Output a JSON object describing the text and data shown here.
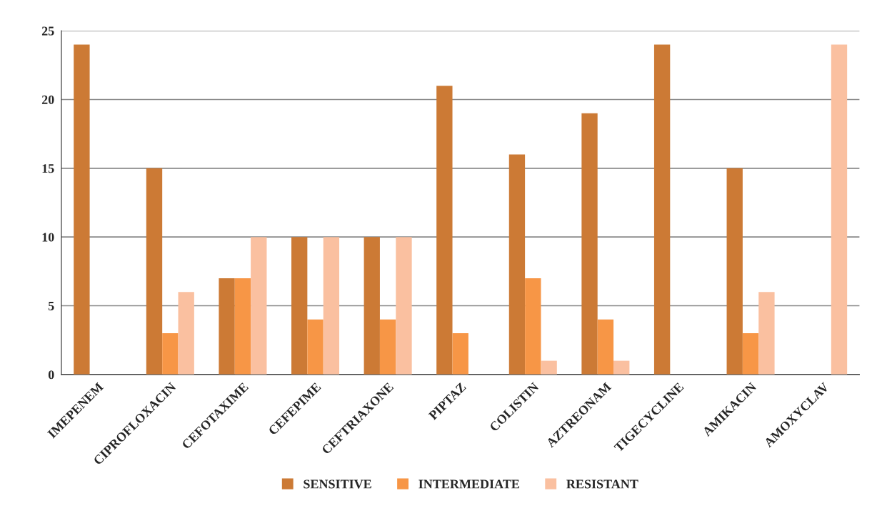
{
  "chart_data": {
    "type": "bar",
    "categories": [
      "IMEPENEM",
      "CIPROFLOXACIN",
      "CEFOTAXIME",
      "CEFEPIME",
      "CEFTRIAXONE",
      "PIPTAZ",
      "COLISTIN",
      "AZTREONAM",
      "TIGECYCLINE",
      "AMIKACIN",
      "AMOXYCLAV"
    ],
    "series": [
      {
        "name": "SENSITIVE",
        "color": "#cc7a35",
        "values": [
          24,
          15,
          7,
          10,
          10,
          21,
          16,
          19,
          24,
          15,
          0
        ]
      },
      {
        "name": "INTERMEDIATE",
        "color": "#f79646",
        "values": [
          0,
          3,
          7,
          4,
          4,
          3,
          7,
          4,
          0,
          3,
          0
        ]
      },
      {
        "name": "RESISTANT",
        "color": "#fac0a0",
        "values": [
          0,
          6,
          10,
          10,
          10,
          0,
          1,
          1,
          0,
          6,
          24
        ]
      }
    ],
    "ylim": [
      0,
      25
    ],
    "yticks": [
      0,
      5,
      10,
      15,
      20,
      25
    ],
    "grid": "y",
    "legend": "bottom"
  }
}
